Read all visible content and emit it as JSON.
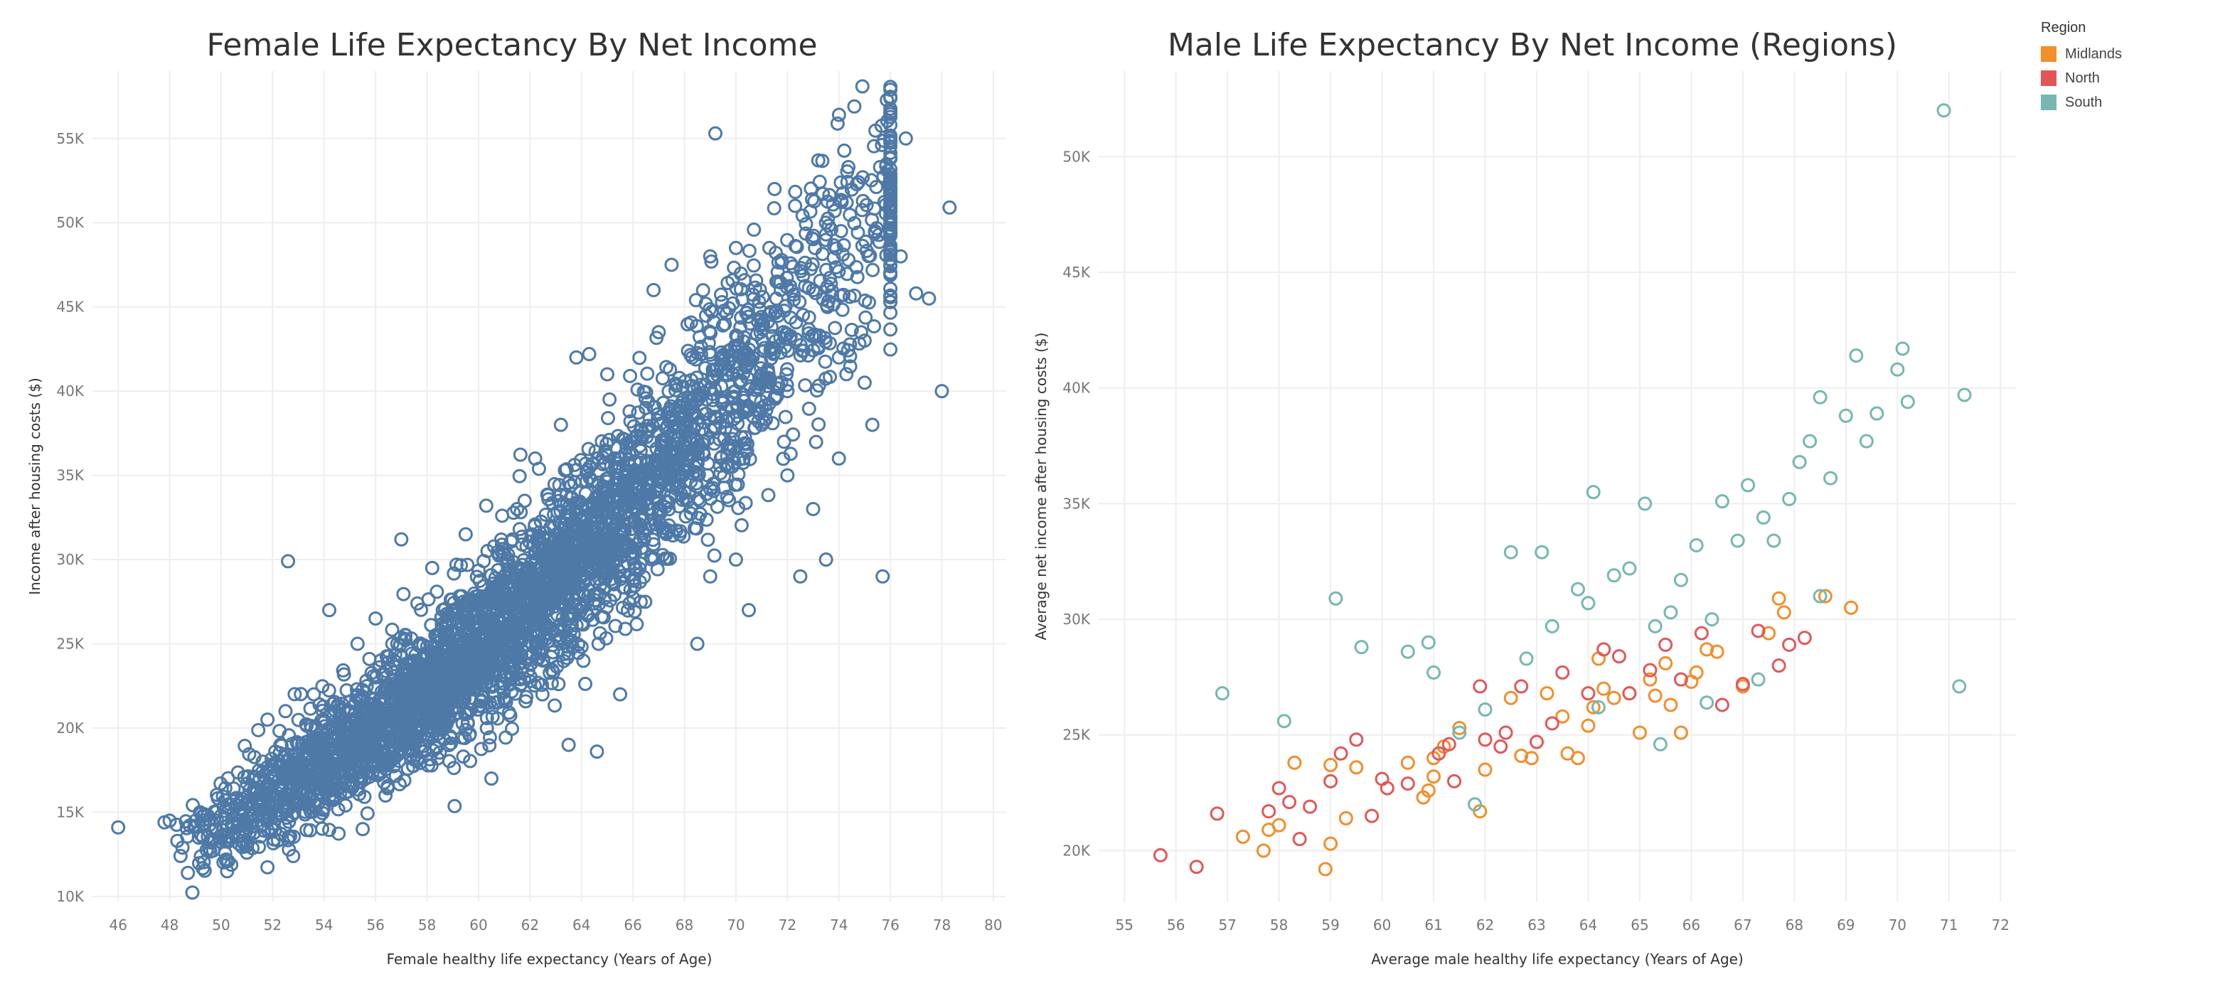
{
  "chart_data": [
    {
      "type": "scatter",
      "title": "Female Life Expectancy By Net Income",
      "xlabel": "Female healthy life expectancy (Years of Age)",
      "ylabel": "Income after housing costs ($)",
      "xlim": [
        45,
        80.5
      ],
      "ylim": [
        9700,
        59000
      ],
      "x_ticks": [
        46,
        48,
        50,
        52,
        54,
        56,
        58,
        60,
        62,
        64,
        66,
        68,
        70,
        72,
        74,
        76,
        78,
        80
      ],
      "y_ticks": [
        10000,
        15000,
        20000,
        25000,
        30000,
        35000,
        40000,
        45000,
        50000,
        55000
      ],
      "y_tick_labels": [
        "10K",
        "15K",
        "20K",
        "25K",
        "30K",
        "35K",
        "40K",
        "45K",
        "50K",
        "55K"
      ],
      "grid": true,
      "color": "#4e79a7",
      "points": [
        [
          46,
          14100
        ],
        [
          47.8,
          14400
        ],
        [
          48,
          14500
        ],
        [
          48.3,
          13300
        ],
        [
          48.5,
          12900
        ],
        [
          49,
          14200
        ],
        [
          49.3,
          13500
        ],
        [
          49.8,
          15000
        ],
        [
          50,
          14800
        ],
        [
          50.3,
          15200
        ],
        [
          50.5,
          13800
        ],
        [
          51,
          12600
        ],
        [
          51.2,
          14900
        ],
        [
          51.5,
          17000
        ],
        [
          51.8,
          20500
        ],
        [
          52,
          16000
        ],
        [
          52.3,
          19000
        ],
        [
          52.5,
          21000
        ],
        [
          52.6,
          29900
        ],
        [
          52.8,
          12400
        ],
        [
          53,
          18000
        ],
        [
          53.3,
          15500
        ],
        [
          53.6,
          22000
        ],
        [
          54,
          17000
        ],
        [
          54.2,
          27000
        ],
        [
          54.5,
          20000
        ],
        [
          55,
          19000
        ],
        [
          55.3,
          25000
        ],
        [
          55.5,
          14000
        ],
        [
          56,
          26500
        ],
        [
          56.5,
          22000
        ],
        [
          57,
          31200
        ],
        [
          57.5,
          24000
        ],
        [
          58,
          21000
        ],
        [
          58.2,
          29500
        ],
        [
          58.5,
          25500
        ],
        [
          59,
          27000
        ],
        [
          59.5,
          31500
        ],
        [
          60,
          23000
        ],
        [
          60.3,
          33200
        ],
        [
          60.5,
          17000
        ],
        [
          61,
          29000
        ],
        [
          61.5,
          33000
        ],
        [
          62,
          27000
        ],
        [
          62.2,
          36000
        ],
        [
          62.5,
          24000
        ],
        [
          63,
          30000
        ],
        [
          63.2,
          38000
        ],
        [
          63.5,
          19000
        ],
        [
          63.8,
          42000
        ],
        [
          64,
          33000
        ],
        [
          64.3,
          42200
        ],
        [
          64.6,
          18600
        ],
        [
          65,
          41000
        ],
        [
          65.3,
          36000
        ],
        [
          65.5,
          22000
        ],
        [
          66,
          37000
        ],
        [
          66.5,
          39000
        ],
        [
          66.8,
          46000
        ],
        [
          67,
          43500
        ],
        [
          67.5,
          47500
        ],
        [
          68,
          34000
        ],
        [
          68.3,
          42000
        ],
        [
          68.5,
          25000
        ],
        [
          69,
          48000
        ],
        [
          69.2,
          55300
        ],
        [
          69.5,
          42000
        ],
        [
          70,
          48500
        ],
        [
          70.3,
          36000
        ],
        [
          70.5,
          27000
        ],
        [
          71,
          44000
        ],
        [
          71.3,
          48500
        ],
        [
          71.5,
          52000
        ],
        [
          72,
          40000
        ],
        [
          72.3,
          51000
        ],
        [
          72.5,
          29000
        ],
        [
          73,
          46000
        ],
        [
          73.2,
          53700
        ],
        [
          73.5,
          30000
        ],
        [
          74,
          42000
        ],
        [
          74.3,
          51200
        ],
        [
          74.6,
          56900
        ],
        [
          75,
          43000
        ],
        [
          75.3,
          38000
        ],
        [
          75.6,
          53300
        ],
        [
          75.7,
          29000
        ],
        [
          76,
          47000
        ],
        [
          76.4,
          48000
        ],
        [
          76.6,
          55000
        ],
        [
          77,
          45800
        ],
        [
          77.5,
          45500
        ],
        [
          78,
          40000
        ],
        [
          78.3,
          50900
        ],
        [
          72,
          35000
        ],
        [
          73,
          33000
        ],
        [
          74,
          36000
        ],
        [
          75,
          40500
        ],
        [
          70,
          30000
        ],
        [
          71,
          38000
        ],
        [
          69,
          29000
        ]
      ],
      "dense_band": {
        "x_range": [
          48,
          76
        ],
        "note": "very dense cloud of points following an upward trend"
      }
    },
    {
      "type": "scatter",
      "title": "Male Life Expectancy By Net Income (Regions)",
      "xlabel": "Average male healthy life expectancy (Years of Age)",
      "ylabel": "Average net income after housing costs ($)",
      "xlim": [
        54.5,
        72.3
      ],
      "ylim": [
        17800,
        53700
      ],
      "x_ticks": [
        55,
        56,
        57,
        58,
        59,
        60,
        61,
        62,
        63,
        64,
        65,
        66,
        67,
        68,
        69,
        70,
        71,
        72
      ],
      "y_ticks": [
        20000,
        25000,
        30000,
        35000,
        40000,
        45000,
        50000
      ],
      "y_tick_labels": [
        "20K",
        "25K",
        "30K",
        "35K",
        "40K",
        "45K",
        "50K"
      ],
      "grid": true,
      "legend": {
        "title": "Region",
        "placement": "top-right",
        "entries": [
          {
            "name": "Midlands",
            "color": "#f28e2b"
          },
          {
            "name": "North",
            "color": "#e15759"
          },
          {
            "name": "South",
            "color": "#76b7b2"
          }
        ]
      },
      "series": [
        {
          "name": "Midlands",
          "color": "#f28e2b",
          "points": [
            [
              57.3,
              20600
            ],
            [
              57.7,
              20000
            ],
            [
              57.8,
              20900
            ],
            [
              58,
              21100
            ],
            [
              58.3,
              23800
            ],
            [
              58.9,
              19200
            ],
            [
              59,
              20300
            ],
            [
              59,
              23700
            ],
            [
              59.3,
              21400
            ],
            [
              59.5,
              23600
            ],
            [
              60.5,
              23800
            ],
            [
              60.8,
              22300
            ],
            [
              60.9,
              22600
            ],
            [
              61,
              23200
            ],
            [
              61,
              24000
            ],
            [
              61.2,
              24500
            ],
            [
              61.5,
              25300
            ],
            [
              61.9,
              21700
            ],
            [
              62,
              23500
            ],
            [
              62.5,
              26600
            ],
            [
              62.7,
              24100
            ],
            [
              62.9,
              24000
            ],
            [
              63.2,
              26800
            ],
            [
              63.5,
              25800
            ],
            [
              63.8,
              24000
            ],
            [
              64,
              25400
            ],
            [
              64.1,
              26200
            ],
            [
              64.2,
              28300
            ],
            [
              64.5,
              26600
            ],
            [
              64.8,
              26800
            ],
            [
              65,
              25100
            ],
            [
              65.2,
              27400
            ],
            [
              65.3,
              26700
            ],
            [
              65.5,
              28100
            ],
            [
              65.8,
              25100
            ],
            [
              66,
              27300
            ],
            [
              66.1,
              27700
            ],
            [
              66.3,
              28700
            ],
            [
              66.5,
              28600
            ],
            [
              67,
              27100
            ],
            [
              67.5,
              29400
            ],
            [
              67.7,
              30900
            ],
            [
              67.8,
              30300
            ],
            [
              68.6,
              31000
            ],
            [
              69.1,
              30500
            ],
            [
              63.6,
              24200
            ],
            [
              64.3,
              27000
            ],
            [
              65.6,
              26300
            ]
          ]
        },
        {
          "name": "North",
          "color": "#e15759",
          "points": [
            [
              55.7,
              19800
            ],
            [
              56.4,
              19300
            ],
            [
              56.8,
              21600
            ],
            [
              57.8,
              21700
            ],
            [
              58,
              22700
            ],
            [
              58.2,
              22100
            ],
            [
              58.4,
              20500
            ],
            [
              58.6,
              21900
            ],
            [
              59,
              23000
            ],
            [
              59.2,
              24200
            ],
            [
              59.5,
              24800
            ],
            [
              59.8,
              21500
            ],
            [
              60,
              23100
            ],
            [
              60.1,
              22700
            ],
            [
              60.5,
              22900
            ],
            [
              61.1,
              24200
            ],
            [
              61.3,
              24600
            ],
            [
              61.4,
              23000
            ],
            [
              61.9,
              27100
            ],
            [
              62,
              24800
            ],
            [
              62.3,
              24500
            ],
            [
              62.7,
              27100
            ],
            [
              63,
              24700
            ],
            [
              63.3,
              25500
            ],
            [
              63.5,
              27700
            ],
            [
              64,
              26800
            ],
            [
              64.3,
              28700
            ],
            [
              64.8,
              26800
            ],
            [
              65.2,
              27800
            ],
            [
              65.5,
              28900
            ],
            [
              65.8,
              27400
            ],
            [
              66.2,
              29400
            ],
            [
              66.6,
              26300
            ],
            [
              67,
              27200
            ],
            [
              67.3,
              29500
            ],
            [
              67.7,
              28000
            ],
            [
              67.9,
              28900
            ],
            [
              68.2,
              29200
            ],
            [
              62.4,
              25100
            ],
            [
              64.6,
              28400
            ]
          ]
        },
        {
          "name": "South",
          "color": "#76b7b2",
          "points": [
            [
              56.9,
              26800
            ],
            [
              58.1,
              25600
            ],
            [
              59.1,
              30900
            ],
            [
              59.6,
              28800
            ],
            [
              60.5,
              28600
            ],
            [
              60.9,
              29000
            ],
            [
              61,
              27700
            ],
            [
              61.5,
              25100
            ],
            [
              61.8,
              22000
            ],
            [
              62,
              26100
            ],
            [
              62.5,
              32900
            ],
            [
              62.8,
              28300
            ],
            [
              63.1,
              32900
            ],
            [
              63.3,
              29700
            ],
            [
              63.8,
              31300
            ],
            [
              64,
              30700
            ],
            [
              64.1,
              35500
            ],
            [
              64.5,
              31900
            ],
            [
              64.8,
              32200
            ],
            [
              65.1,
              35000
            ],
            [
              65.3,
              29700
            ],
            [
              65.6,
              30300
            ],
            [
              65.8,
              31700
            ],
            [
              66.1,
              33200
            ],
            [
              66.4,
              30000
            ],
            [
              66.6,
              35100
            ],
            [
              66.9,
              33400
            ],
            [
              67.1,
              35800
            ],
            [
              67.4,
              34400
            ],
            [
              67.6,
              33400
            ],
            [
              67.9,
              35200
            ],
            [
              68.1,
              36800
            ],
            [
              68.3,
              37700
            ],
            [
              68.5,
              39600
            ],
            [
              68.7,
              36100
            ],
            [
              69,
              38800
            ],
            [
              69.2,
              41400
            ],
            [
              69.4,
              37700
            ],
            [
              69.6,
              38900
            ],
            [
              70,
              40800
            ],
            [
              70.1,
              41700
            ],
            [
              70.2,
              39400
            ],
            [
              70.9,
              52000
            ],
            [
              71.2,
              27100
            ],
            [
              71.3,
              39700
            ],
            [
              64.2,
              26200
            ],
            [
              65.4,
              24600
            ],
            [
              66.3,
              26400
            ],
            [
              67.3,
              27400
            ],
            [
              68.5,
              31000
            ]
          ]
        }
      ]
    }
  ]
}
